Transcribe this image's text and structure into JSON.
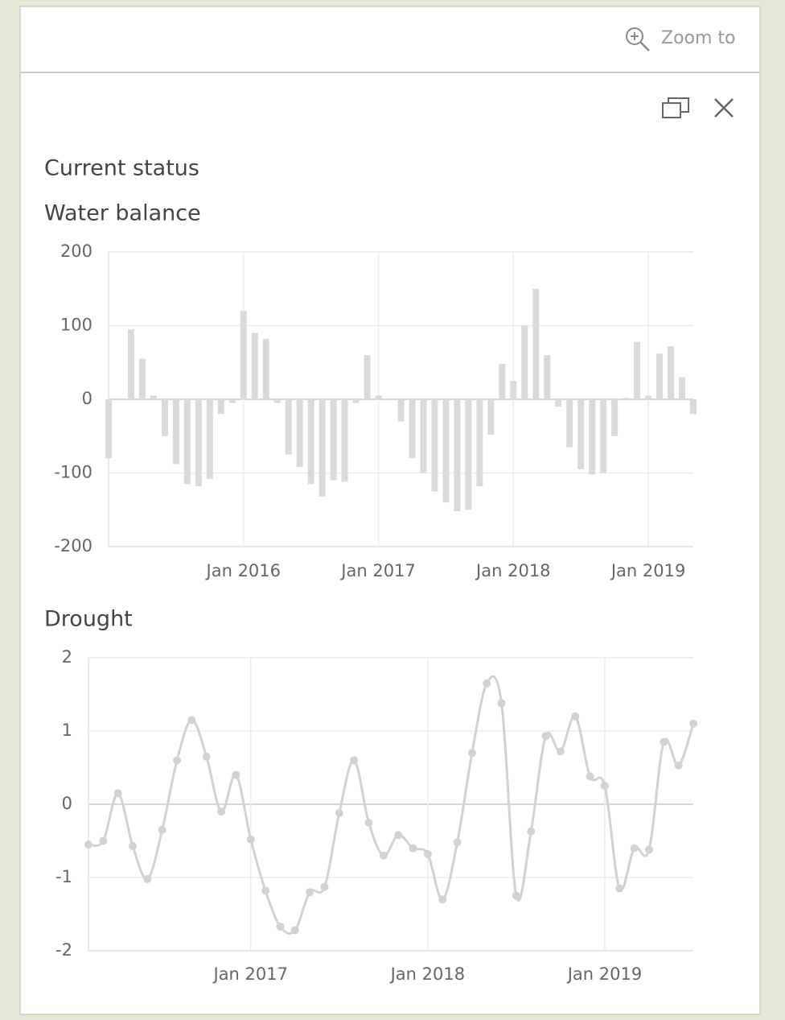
{
  "zoom_to": "Zoom to",
  "heading": "Current status",
  "chart_data": [
    {
      "type": "bar",
      "title": "Water balance",
      "color": "#dadada",
      "grid": true,
      "x": [
        "2015-01",
        "2015-02",
        "2015-03",
        "2015-04",
        "2015-05",
        "2015-06",
        "2015-07",
        "2015-08",
        "2015-09",
        "2015-10",
        "2015-11",
        "2015-12",
        "2016-01",
        "2016-02",
        "2016-03",
        "2016-04",
        "2016-05",
        "2016-06",
        "2016-07",
        "2016-08",
        "2016-09",
        "2016-10",
        "2016-11",
        "2016-12",
        "2017-01",
        "2017-02",
        "2017-03",
        "2017-04",
        "2017-05",
        "2017-06",
        "2017-07",
        "2017-08",
        "2017-09",
        "2017-10",
        "2017-11",
        "2017-12",
        "2018-01",
        "2018-02",
        "2018-03",
        "2018-04",
        "2018-05",
        "2018-06",
        "2018-07",
        "2018-08",
        "2018-09",
        "2018-10",
        "2018-11",
        "2018-12",
        "2019-01",
        "2019-02",
        "2019-03",
        "2019-04",
        "2019-05"
      ],
      "values": [
        -80,
        0,
        95,
        55,
        5,
        -50,
        -88,
        -115,
        -118,
        -108,
        -20,
        -5,
        120,
        90,
        82,
        -5,
        -75,
        -92,
        -115,
        -132,
        -110,
        -112,
        -5,
        60,
        5,
        0,
        -30,
        -80,
        -100,
        -125,
        -140,
        -152,
        -150,
        -118,
        -48,
        48,
        25,
        100,
        150,
        60,
        -10,
        -65,
        -95,
        -102,
        -100,
        -50,
        2,
        78,
        5,
        62,
        72,
        30,
        -20
      ],
      "xlim": [
        "2015-01",
        "2019-05"
      ],
      "xticks": [
        {
          "value": "2016-01",
          "label": "Jan 2016"
        },
        {
          "value": "2017-01",
          "label": "Jan 2017"
        },
        {
          "value": "2018-01",
          "label": "Jan 2018"
        },
        {
          "value": "2019-01",
          "label": "Jan 2019"
        }
      ],
      "ylim": [
        -200,
        200
      ],
      "yticks": [
        -200,
        -100,
        0,
        100,
        200
      ]
    },
    {
      "type": "line",
      "title": "Drought",
      "color": "#d2d2d2",
      "grid": true,
      "x": [
        "2016-02",
        "2016-03",
        "2016-04",
        "2016-05",
        "2016-06",
        "2016-07",
        "2016-08",
        "2016-09",
        "2016-10",
        "2016-11",
        "2016-12",
        "2017-01",
        "2017-02",
        "2017-03",
        "2017-04",
        "2017-05",
        "2017-06",
        "2017-07",
        "2017-08",
        "2017-09",
        "2017-10",
        "2017-11",
        "2017-12",
        "2018-01",
        "2018-02",
        "2018-03",
        "2018-04",
        "2018-05",
        "2018-06",
        "2018-07",
        "2018-08",
        "2018-09",
        "2018-10",
        "2018-11",
        "2018-12",
        "2019-01",
        "2019-02",
        "2019-03",
        "2019-04",
        "2019-05",
        "2019-06",
        "2019-07"
      ],
      "values": [
        -0.55,
        -0.5,
        0.15,
        -0.57,
        -1.02,
        -0.35,
        0.6,
        1.15,
        0.65,
        -0.1,
        0.4,
        -0.48,
        -1.18,
        -1.67,
        -1.72,
        -1.2,
        -1.13,
        -0.12,
        0.6,
        -0.25,
        -0.7,
        -0.42,
        -0.6,
        -0.68,
        -1.3,
        -0.52,
        0.7,
        1.65,
        1.38,
        -1.25,
        -0.37,
        0.93,
        0.72,
        1.2,
        0.38,
        0.25,
        -1.15,
        -0.6,
        -0.62,
        0.85,
        0.53,
        1.1
      ],
      "xlim": [
        "2016-02",
        "2019-07"
      ],
      "xticks": [
        {
          "value": "2017-01",
          "label": "Jan 2017"
        },
        {
          "value": "2018-01",
          "label": "Jan 2018"
        },
        {
          "value": "2019-01",
          "label": "Jan 2019"
        }
      ],
      "ylim": [
        -2,
        2
      ],
      "yticks": [
        -2,
        -1,
        0,
        1,
        2
      ]
    }
  ]
}
